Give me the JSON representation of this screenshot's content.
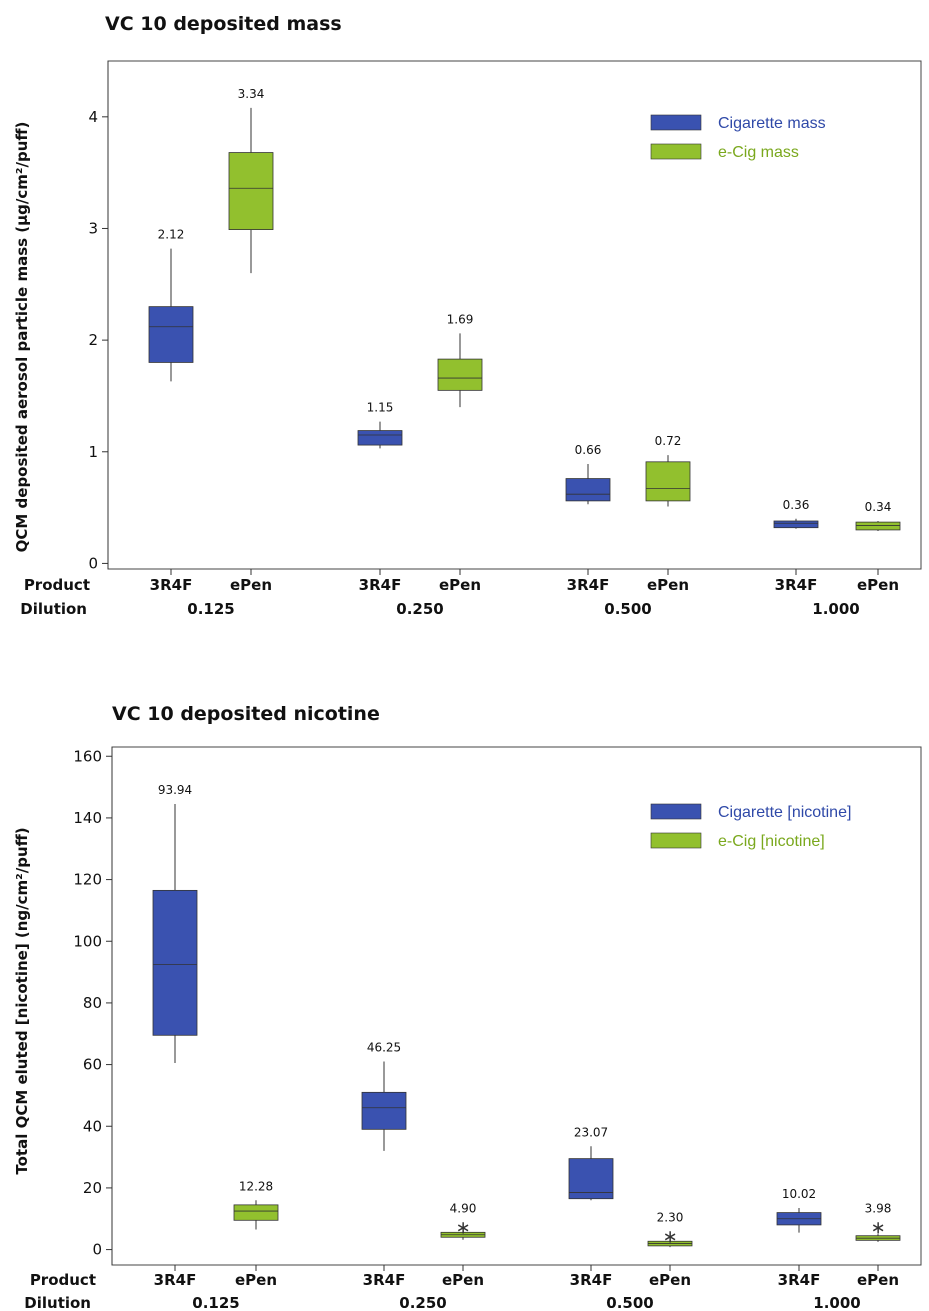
{
  "chart_data": [
    {
      "type": "box",
      "title": "VC 10 deposited mass",
      "ylabel": "QCM deposited aerosol particle mass (µg/cm²/puff)",
      "ylim": [
        -0.05,
        4.5
      ],
      "yticks": [
        0,
        1,
        2,
        3,
        4
      ],
      "row_labels": [
        "Product",
        "Dilution"
      ],
      "groups": [
        "0.125",
        "0.250",
        "0.500",
        "1.000"
      ],
      "products": [
        "3R4F",
        "ePen"
      ],
      "legend": [
        {
          "label": "Cigarette mass",
          "color": "#3a52b0"
        },
        {
          "label": "e-Cig mass",
          "color": "#92c02e"
        }
      ],
      "boxes": [
        {
          "group": "0.125",
          "product": "3R4F",
          "series": 0,
          "min": 1.63,
          "q1": 1.8,
          "median": 2.12,
          "q3": 2.3,
          "max": 2.82,
          "label": "2.12"
        },
        {
          "group": "0.125",
          "product": "ePen",
          "series": 1,
          "min": 2.6,
          "q1": 2.99,
          "median": 3.36,
          "q3": 3.68,
          "max": 4.08,
          "label": "3.34"
        },
        {
          "group": "0.250",
          "product": "3R4F",
          "series": 0,
          "min": 1.03,
          "q1": 1.06,
          "median": 1.15,
          "q3": 1.19,
          "max": 1.27,
          "label": "1.15"
        },
        {
          "group": "0.250",
          "product": "ePen",
          "series": 1,
          "min": 1.4,
          "q1": 1.55,
          "median": 1.66,
          "q3": 1.83,
          "max": 2.06,
          "label": "1.69"
        },
        {
          "group": "0.500",
          "product": "3R4F",
          "series": 0,
          "min": 0.53,
          "q1": 0.56,
          "median": 0.62,
          "q3": 0.76,
          "max": 0.89,
          "label": "0.66"
        },
        {
          "group": "0.500",
          "product": "ePen",
          "series": 1,
          "min": 0.51,
          "q1": 0.56,
          "median": 0.67,
          "q3": 0.91,
          "max": 0.97,
          "label": "0.72"
        },
        {
          "group": "1.000",
          "product": "3R4F",
          "series": 0,
          "min": 0.31,
          "q1": 0.32,
          "median": 0.36,
          "q3": 0.38,
          "max": 0.4,
          "label": "0.36"
        },
        {
          "group": "1.000",
          "product": "ePen",
          "series": 1,
          "min": 0.29,
          "q1": 0.3,
          "median": 0.34,
          "q3": 0.37,
          "max": 0.38,
          "label": "0.34"
        }
      ]
    },
    {
      "type": "box",
      "title": "VC 10 deposited nicotine",
      "ylabel": "Total QCM eluted [nicotine] (ng/cm²/puff)",
      "ylim": [
        -5,
        163
      ],
      "yticks": [
        0,
        20,
        40,
        60,
        80,
        100,
        120,
        140,
        160
      ],
      "row_labels": [
        "Product",
        "Dilution"
      ],
      "groups": [
        "0.125",
        "0.250",
        "0.500",
        "1.000"
      ],
      "products": [
        "3R4F",
        "ePen"
      ],
      "legend": [
        {
          "label": "Cigarette [nicotine]",
          "color": "#3a52b0"
        },
        {
          "label": "e-Cig [nicotine]",
          "color": "#92c02e"
        }
      ],
      "boxes": [
        {
          "group": "0.125",
          "product": "3R4F",
          "series": 0,
          "min": 60.5,
          "q1": 69.5,
          "median": 92.5,
          "q3": 116.5,
          "max": 144.5,
          "label": "93.94"
        },
        {
          "group": "0.125",
          "product": "ePen",
          "series": 1,
          "min": 6.5,
          "q1": 9.5,
          "median": 12.5,
          "q3": 14.5,
          "max": 16.0,
          "label": "12.28"
        },
        {
          "group": "0.250",
          "product": "3R4F",
          "series": 0,
          "min": 32.0,
          "q1": 39.0,
          "median": 46.0,
          "q3": 51.0,
          "max": 61.0,
          "label": "46.25"
        },
        {
          "group": "0.250",
          "product": "ePen",
          "series": 1,
          "min": 3.2,
          "q1": 4.0,
          "median": 4.8,
          "q3": 5.6,
          "max": 6.0,
          "outlier": 7.5,
          "label": "4.90"
        },
        {
          "group": "0.500",
          "product": "3R4F",
          "series": 0,
          "min": 16.0,
          "q1": 16.5,
          "median": 18.5,
          "q3": 29.5,
          "max": 33.5,
          "label": "23.07"
        },
        {
          "group": "0.500",
          "product": "ePen",
          "series": 1,
          "min": 0.8,
          "q1": 1.2,
          "median": 2.0,
          "q3": 2.7,
          "max": 3.0,
          "outlier": 4.5,
          "label": "2.30"
        },
        {
          "group": "1.000",
          "product": "3R4F",
          "series": 0,
          "min": 5.5,
          "q1": 8.0,
          "median": 10.0,
          "q3": 12.0,
          "max": 13.5,
          "label": "10.02"
        },
        {
          "group": "1.000",
          "product": "ePen",
          "series": 1,
          "min": 2.5,
          "q1": 3.0,
          "median": 3.7,
          "q3": 4.5,
          "max": 5.0,
          "outlier": 7.5,
          "label": "3.98"
        }
      ]
    }
  ]
}
